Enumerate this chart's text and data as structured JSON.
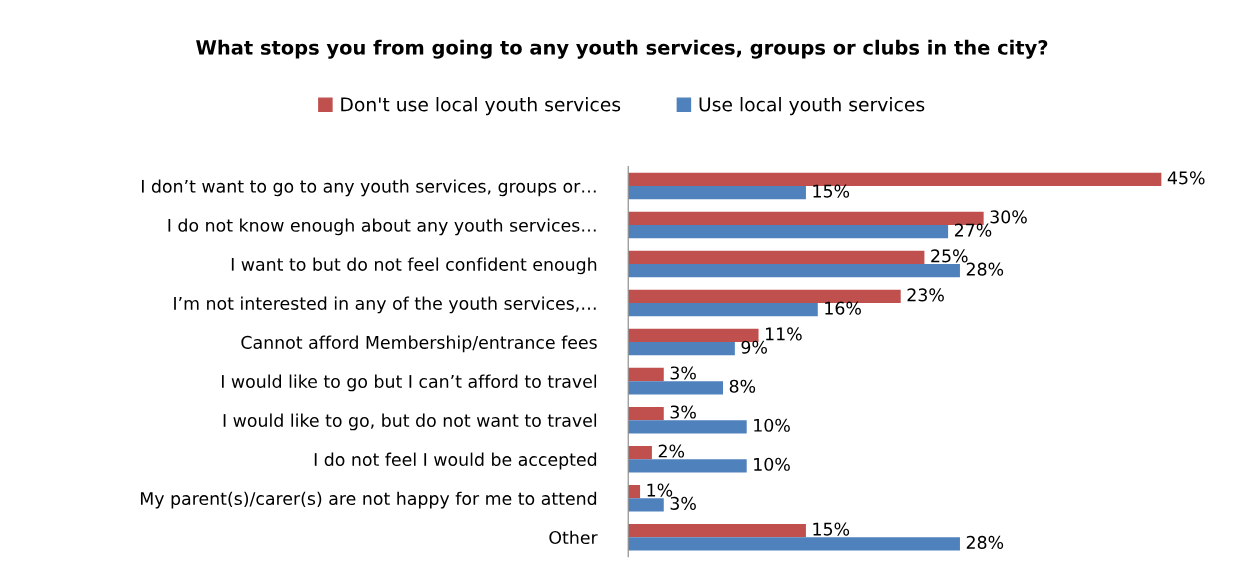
{
  "chart_data": {
    "type": "bar",
    "orientation": "horizontal",
    "title": "What stops you from going to any youth services, groups or clubs in the city?",
    "categories": [
      "I don’t want to go to any youth services, groups or…",
      "I do not know enough about any youth services…",
      "I want to but do not feel confident enough",
      "I’m not interested in any of the youth services,…",
      "Cannot afford Membership/entrance fees",
      "I would like to go but I can’t afford to travel",
      "I would like to go, but do not want to travel",
      "I do not feel I would be accepted",
      "My parent(s)/carer(s) are not happy for me to attend",
      "Other"
    ],
    "series": [
      {
        "name": "Don't use local youth services",
        "color": "#c0504d",
        "values": [
          45,
          30,
          25,
          23,
          11,
          3,
          3,
          2,
          1,
          15
        ],
        "value_labels": [
          "45%",
          "30%",
          "25%",
          "23%",
          "11%",
          "3%",
          "3%",
          "2%",
          "1%",
          "15%"
        ]
      },
      {
        "name": "Use local youth services",
        "color": "#4f81bd",
        "values": [
          15,
          27,
          28,
          16,
          9,
          8,
          10,
          10,
          3,
          28
        ],
        "value_labels": [
          "15%",
          "27%",
          "28%",
          "16%",
          "9%",
          "8%",
          "10%",
          "10%",
          "3%",
          "28%"
        ]
      }
    ],
    "relative": false,
    "legend": "top",
    "grid": false
  }
}
